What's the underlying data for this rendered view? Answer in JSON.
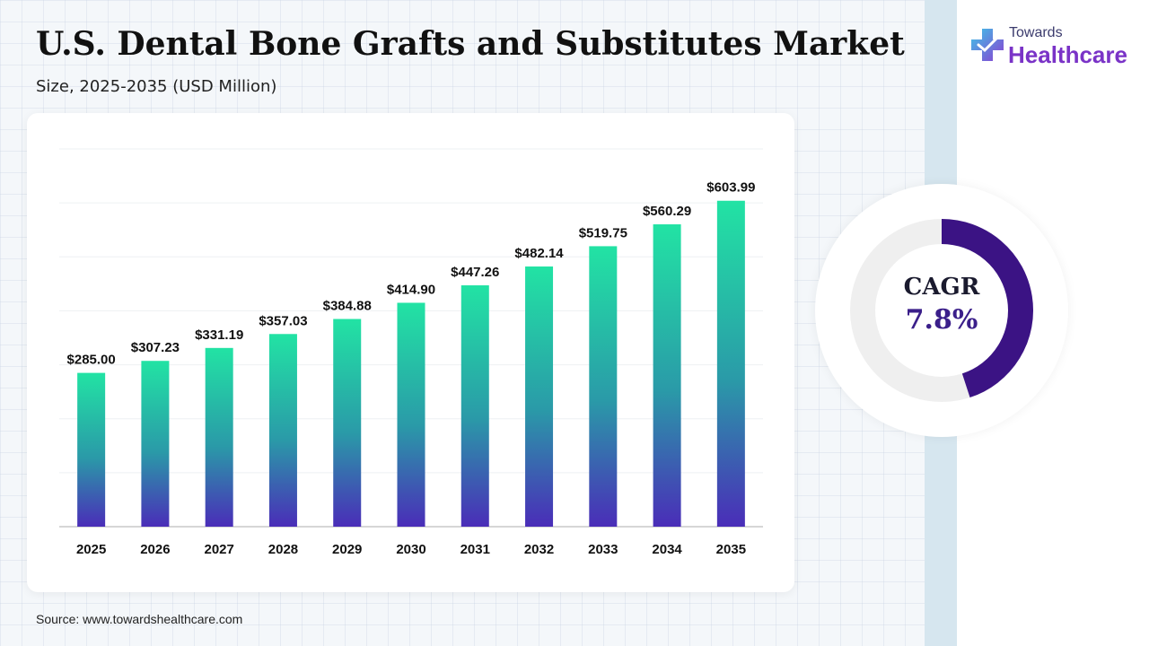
{
  "header": {
    "title": "U.S. Dental Bone Grafts and Substitutes Market",
    "subtitle": "Size, 2025-2035 (USD Million)"
  },
  "logo": {
    "line1": "Towards",
    "line2": "Healthcare",
    "icon": "medical-cross-icon"
  },
  "cagr": {
    "label": "CAGR",
    "value": "7.8%",
    "fill_fraction": 0.45,
    "ring_color": "#3b1384",
    "track_color": "#efefef"
  },
  "source": "Source: www.towardshealthcare.com",
  "colors": {
    "bar_top": "#22e3a4",
    "bar_mid": "#2a9aa8",
    "bar_bottom": "#4a2db8"
  },
  "chart_data": {
    "type": "bar",
    "categories": [
      "2025",
      "2026",
      "2027",
      "2028",
      "2029",
      "2030",
      "2031",
      "2032",
      "2033",
      "2034",
      "2035"
    ],
    "values": [
      285.0,
      307.23,
      331.19,
      357.03,
      384.88,
      414.9,
      447.26,
      482.14,
      519.75,
      560.29,
      603.99
    ],
    "labels": [
      "$285.00",
      "$307.23",
      "$331.19",
      "$357.03",
      "$384.88",
      "$414.90",
      "$447.26",
      "$482.14",
      "$519.75",
      "$560.29",
      "$603.99"
    ],
    "title": "U.S. Dental Bone Grafts and Substitutes Market",
    "xlabel": "",
    "ylabel": "",
    "ylim": [
      0,
      700
    ],
    "grid": true
  }
}
